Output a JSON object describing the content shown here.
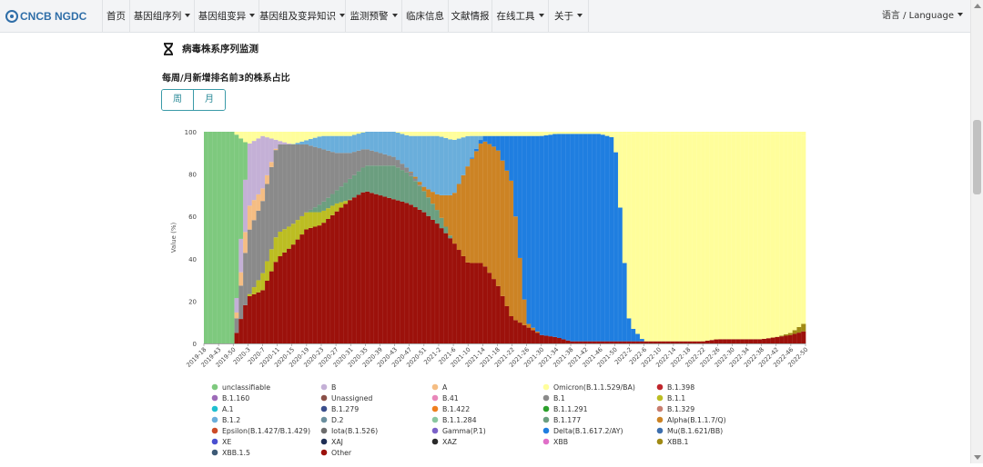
{
  "nav": {
    "logo_text": "CNCB NGDC",
    "items": [
      {
        "label": "首页",
        "dropdown": false
      },
      {
        "label": "基因组序列",
        "dropdown": true
      },
      {
        "label": "基因组变异",
        "dropdown": true
      },
      {
        "label": "基因组及变异知识",
        "dropdown": true
      },
      {
        "label": "监测预警",
        "dropdown": true
      },
      {
        "label": "临床信息",
        "dropdown": false
      },
      {
        "label": "文献情报",
        "dropdown": false
      },
      {
        "label": "在线工具",
        "dropdown": true
      },
      {
        "label": "关于",
        "dropdown": true
      }
    ],
    "language": "语言 / Language"
  },
  "section_title": "病毒株系序列监测",
  "subtitle": "每周/月新增排名前3的株系占比",
  "toggle": {
    "week": "周",
    "month": "月"
  },
  "chart_data": {
    "type": "area",
    "stacked": true,
    "ylabel": "Value (%)",
    "ylim": [
      0,
      100
    ],
    "y_ticks": [
      0,
      20,
      40,
      60,
      80,
      100
    ],
    "x_tick_labels": [
      "2019-18",
      "2019-43",
      "2019-50",
      "2020-3",
      "2020-7",
      "2020-11",
      "2020-15",
      "2020-19",
      "2020-23",
      "2020-27",
      "2020-31",
      "2020-35",
      "2020-39",
      "2020-43",
      "2020-47",
      "2020-51",
      "2021-2",
      "2021-6",
      "2021-10",
      "2021-14",
      "2021-18",
      "2021-22",
      "2021-26",
      "2021-30",
      "2021-34",
      "2021-38",
      "2021-42",
      "2021-46",
      "2021-50",
      "2022-2",
      "2022-6",
      "2022-10",
      "2022-14",
      "2022-18",
      "2022-22",
      "2022-26",
      "2022-30",
      "2022-34",
      "2022-38",
      "2022-42",
      "2022-46",
      "2022-50"
    ],
    "series_shares_by_tick": {
      "unclassifiable": [
        100,
        100,
        100,
        0,
        0,
        0,
        0,
        0,
        0,
        0,
        0,
        0,
        0,
        0,
        0,
        0,
        0,
        0,
        0,
        0,
        0,
        0,
        0,
        0,
        0,
        0,
        0,
        0,
        0,
        0,
        0,
        0,
        0,
        0,
        0,
        0,
        0,
        0,
        0,
        0,
        0,
        0
      ],
      "B": [
        0,
        0,
        0,
        30,
        25,
        2,
        0,
        0,
        0,
        0,
        0,
        0,
        0,
        0,
        0,
        0,
        0,
        0,
        0,
        0,
        0,
        0,
        0,
        0,
        0,
        0,
        0,
        0,
        0,
        0,
        0,
        0,
        0,
        0,
        0,
        0,
        0,
        0,
        0,
        0,
        0,
        0
      ],
      "A": [
        0,
        0,
        0,
        12,
        6,
        0,
        0,
        0,
        0,
        0,
        0,
        0,
        0,
        0,
        0,
        0,
        0,
        0,
        0,
        0,
        0,
        0,
        0,
        0,
        0,
        0,
        0,
        0,
        0,
        0,
        0,
        0,
        0,
        0,
        0,
        0,
        0,
        0,
        0,
        0,
        0,
        0
      ],
      "B.1.1": [
        0,
        0,
        0,
        0,
        8,
        12,
        10,
        8,
        6,
        4,
        0,
        0,
        0,
        0,
        0,
        0,
        0,
        0,
        0,
        0,
        0,
        0,
        0,
        0,
        0,
        0,
        0,
        0,
        0,
        0,
        0,
        0,
        0,
        0,
        0,
        0,
        0,
        0,
        0,
        0,
        0,
        0
      ],
      "B.1": [
        0,
        0,
        0,
        30,
        34,
        42,
        38,
        32,
        26,
        18,
        12,
        8,
        6,
        4,
        2,
        0,
        0,
        0,
        0,
        0,
        0,
        0,
        0,
        0,
        0,
        0,
        0,
        0,
        0,
        0,
        0,
        0,
        0,
        0,
        0,
        0,
        0,
        0,
        0,
        0,
        0,
        0
      ],
      "B.1.177": [
        0,
        0,
        0,
        0,
        0,
        0,
        0,
        0,
        4,
        6,
        10,
        12,
        14,
        16,
        14,
        10,
        6,
        0,
        0,
        0,
        0,
        0,
        0,
        0,
        0,
        0,
        0,
        0,
        0,
        0,
        0,
        0,
        0,
        0,
        0,
        0,
        0,
        0,
        0,
        0,
        0,
        0
      ],
      "B.1.2": [
        0,
        0,
        0,
        0,
        0,
        0,
        0,
        2,
        6,
        8,
        8,
        8,
        10,
        12,
        16,
        24,
        28,
        26,
        14,
        0,
        0,
        0,
        0,
        0,
        0,
        0,
        0,
        0,
        0,
        0,
        0,
        0,
        0,
        0,
        0,
        0,
        0,
        0,
        0,
        0,
        0,
        0
      ],
      "Alpha(B.1.1.7/Q)": [
        0,
        0,
        0,
        0,
        0,
        0,
        0,
        0,
        0,
        0,
        0,
        0,
        0,
        0,
        0,
        2,
        8,
        22,
        46,
        58,
        64,
        64,
        2,
        0,
        0,
        0,
        0,
        0,
        0,
        0,
        0,
        0,
        0,
        0,
        0,
        0,
        0,
        0,
        0,
        0,
        0,
        0
      ],
      "Delta(B.1.617.2/AY)": [
        0,
        0,
        0,
        0,
        0,
        0,
        0,
        0,
        0,
        0,
        0,
        0,
        0,
        0,
        0,
        0,
        0,
        0,
        0,
        2,
        6,
        22,
        88,
        94,
        96,
        98,
        98,
        98,
        96,
        8,
        0,
        0,
        0,
        0,
        0,
        0,
        0,
        0,
        0,
        0,
        0,
        0
      ],
      "Omicron(B.1.1.529/BA)": [
        0,
        0,
        0,
        0,
        0,
        0,
        0,
        0,
        0,
        0,
        0,
        0,
        0,
        0,
        0,
        0,
        0,
        0,
        0,
        0,
        0,
        0,
        0,
        0,
        0,
        0,
        0,
        0,
        2,
        90,
        99,
        98,
        98,
        98,
        98,
        97,
        97,
        97,
        97,
        96,
        94,
        88
      ],
      "Other": [
        0,
        0,
        0,
        22,
        25,
        40,
        46,
        54,
        56,
        62,
        68,
        72,
        70,
        68,
        66,
        62,
        56,
        48,
        38,
        38,
        28,
        12,
        8,
        4,
        3,
        1,
        1,
        1,
        1,
        1,
        1,
        1,
        1,
        1,
        1,
        2,
        2,
        2,
        2,
        3,
        4,
        6
      ],
      "XBB.1": [
        0,
        0,
        0,
        0,
        0,
        0,
        0,
        0,
        0,
        0,
        0,
        0,
        0,
        0,
        0,
        0,
        0,
        0,
        0,
        0,
        0,
        0,
        0,
        0,
        0,
        0,
        0,
        0,
        0,
        0,
        0,
        0,
        0,
        0,
        0,
        0,
        0,
        0,
        0,
        0,
        1,
        4
      ]
    },
    "legend": [
      {
        "name": "unclassifiable",
        "color": "#7ec97e"
      },
      {
        "name": "B",
        "color": "#c4b0d6"
      },
      {
        "name": "A",
        "color": "#f5bd83"
      },
      {
        "name": "Omicron(B.1.1.529/BA)",
        "color": "#fffe9b"
      },
      {
        "name": "B.1.398",
        "color": "#c0262c"
      },
      {
        "name": "B.1.160",
        "color": "#9d6bb8"
      },
      {
        "name": "Unassigned",
        "color": "#8a5048"
      },
      {
        "name": "B.41",
        "color": "#e887b9"
      },
      {
        "name": "B.1",
        "color": "#8a8a8a"
      },
      {
        "name": "B.1.1",
        "color": "#bcbd22"
      },
      {
        "name": "A.1",
        "color": "#1fbfd0"
      },
      {
        "name": "B.1.279",
        "color": "#3a4e8c"
      },
      {
        "name": "B.1.422",
        "color": "#ef7f1e"
      },
      {
        "name": "B.1.1.291",
        "color": "#2ca02c"
      },
      {
        "name": "B.1.329",
        "color": "#c87d6e"
      },
      {
        "name": "B.1.2",
        "color": "#6aaedb"
      },
      {
        "name": "D.2",
        "color": "#6a8f9e"
      },
      {
        "name": "B.1.1.284",
        "color": "#8ac7a0"
      },
      {
        "name": "B.1.177",
        "color": "#6b9e7f"
      },
      {
        "name": "Alpha(B.1.1.7/Q)",
        "color": "#cc8324"
      },
      {
        "name": "Epsilon(B.1.427/B.1.429)",
        "color": "#cc4b28"
      },
      {
        "name": "Iota(B.1.526)",
        "color": "#6d6d6d"
      },
      {
        "name": "Gamma(P.1)",
        "color": "#7b62c8"
      },
      {
        "name": "Delta(B.1.617.2/AY)",
        "color": "#1f7ee0"
      },
      {
        "name": "Mu(B.1.621/BB)",
        "color": "#3d6fae"
      },
      {
        "name": "XE",
        "color": "#4a4fd0"
      },
      {
        "name": "XAJ",
        "color": "#1f2f55"
      },
      {
        "name": "XAZ",
        "color": "#2a2a2a"
      },
      {
        "name": "XBB",
        "color": "#e06fc8"
      },
      {
        "name": "XBB.1",
        "color": "#a08a14"
      },
      {
        "name": "XBB.1.5",
        "color": "#3d5a76"
      },
      {
        "name": "Other",
        "color": "#9c110b"
      }
    ]
  }
}
